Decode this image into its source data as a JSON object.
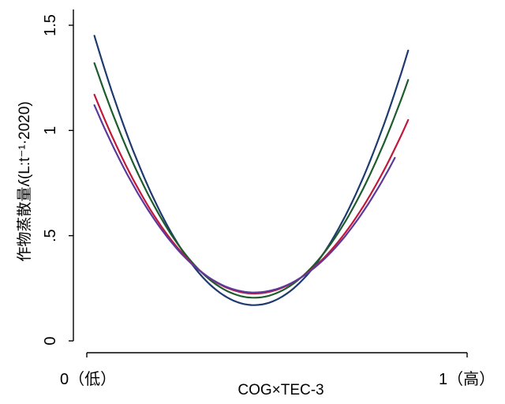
{
  "chart_data": {
    "type": "line",
    "title": "",
    "xlabel": "COG×TEC-3",
    "ylabel": "作物蒸散量ʎ(L:t⁻¹·2020)",
    "x_tick_labels": [
      "0（低）",
      "1（高）"
    ],
    "xlim": [
      0,
      1
    ],
    "ylim": [
      0,
      1.5
    ],
    "y_ticks": [
      {
        "value": 0,
        "label": "0"
      },
      {
        "value": 0.5,
        "label": ".5"
      },
      {
        "value": 1,
        "label": "1"
      },
      {
        "value": 1.5,
        "label": "1.5"
      }
    ],
    "grid": false,
    "legend": "none",
    "series": [
      {
        "color": "#1f3a6e",
        "x_range": [
          0.02,
          0.845
        ],
        "vertex": [
          0.44,
          0.17
        ],
        "points": [
          [
            0.02,
            1.45
          ],
          [
            0.44,
            0.17
          ],
          [
            0.845,
            1.38
          ]
        ]
      },
      {
        "color": "#1e5c2e",
        "x_range": [
          0.02,
          0.845
        ],
        "vertex": [
          0.44,
          0.205
        ],
        "points": [
          [
            0.02,
            1.32
          ],
          [
            0.44,
            0.205
          ],
          [
            0.845,
            1.24
          ]
        ]
      },
      {
        "color": "#c2183a",
        "x_range": [
          0.02,
          0.845
        ],
        "vertex": [
          0.44,
          0.225
        ],
        "points": [
          [
            0.02,
            1.17
          ],
          [
            0.44,
            0.225
          ],
          [
            0.845,
            1.05
          ]
        ]
      },
      {
        "color": "#5b3a9c",
        "x_range": [
          0.02,
          0.81
        ],
        "vertex": [
          0.44,
          0.23
        ],
        "points": [
          [
            0.02,
            1.12
          ],
          [
            0.44,
            0.23
          ],
          [
            0.81,
            0.87
          ]
        ]
      }
    ]
  }
}
